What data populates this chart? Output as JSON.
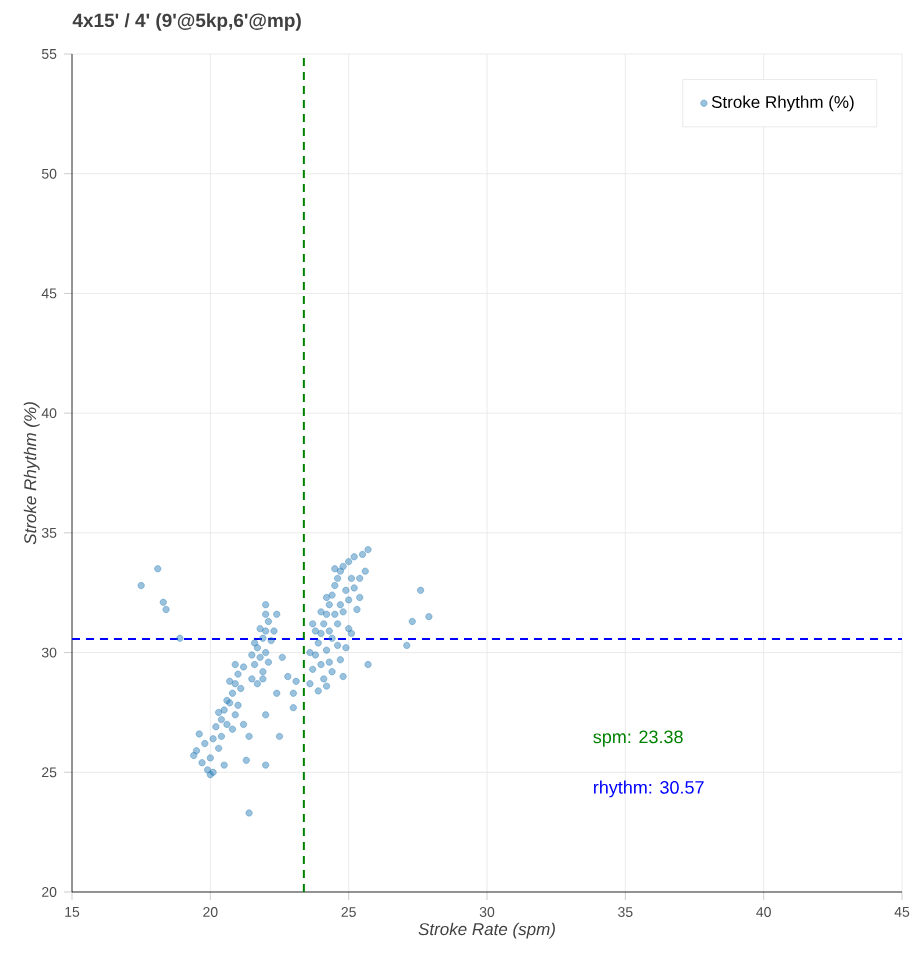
{
  "chart_data": {
    "type": "scatter",
    "title": "4x15' / 4' (9'@5kp,6'@mp)",
    "xlabel": "Stroke Rate (spm)",
    "ylabel": "Stroke Rhythm (%)",
    "xlim": [
      15,
      45
    ],
    "xticks": [
      15,
      20,
      25,
      30,
      35,
      40,
      45
    ],
    "ylim": [
      20,
      55
    ],
    "yticks": [
      20,
      25,
      30,
      35,
      40,
      45,
      50,
      55
    ],
    "grid": true,
    "legend": "top right",
    "series": [
      {
        "name": "Stroke Rhythm (%)",
        "color": "#1f77b4",
        "x": [
          19.5,
          19.7,
          19.9,
          20.0,
          19.8,
          20.1,
          20.3,
          20.2,
          20.4,
          20.5,
          20.6,
          20.7,
          20.8,
          20.6,
          20.9,
          21.0,
          21.1,
          20.9,
          21.2,
          20.7,
          20.4,
          20.8,
          21.0,
          20.3,
          20.1,
          20.5,
          19.6,
          20.0,
          21.2,
          20.9,
          21.5,
          21.6,
          21.7,
          21.8,
          21.9,
          22.0,
          22.1,
          21.9,
          22.0,
          21.7,
          22.2,
          21.8,
          21.6,
          22.1,
          22.0,
          21.5,
          22.3,
          21.9,
          23.6,
          23.7,
          23.8,
          23.9,
          24.0,
          24.1,
          24.2,
          24.3,
          24.4,
          24.5,
          24.6,
          24.7,
          24.8,
          25.0,
          25.2,
          25.5,
          25.7,
          24.0,
          24.2,
          24.4,
          24.6,
          24.8,
          25.0,
          25.2,
          25.4,
          25.1,
          24.9,
          24.7,
          24.4,
          24.1,
          23.9,
          24.5,
          24.3,
          24.9,
          25.3,
          25.0,
          24.6,
          23.8,
          24.0,
          24.2,
          23.7,
          24.5,
          25.4,
          25.6,
          24.8,
          24.2,
          23.6,
          25.1,
          24.7,
          24.3,
          17.5,
          18.1,
          18.3,
          18.4,
          18.9,
          19.4,
          21.4,
          22.0,
          22.4,
          22.6,
          22.8,
          22.4,
          22.0,
          22.5,
          21.4,
          22.0,
          21.3,
          27.3,
          27.6,
          27.9,
          27.1,
          25.7,
          23.0,
          23.1,
          23.0
        ],
        "values": [
          25.9,
          25.4,
          25.1,
          25.6,
          26.2,
          26.4,
          26.0,
          26.9,
          27.2,
          27.6,
          27.0,
          27.9,
          28.3,
          28.0,
          28.7,
          29.1,
          28.5,
          27.4,
          29.4,
          28.8,
          26.5,
          26.8,
          27.8,
          27.5,
          25.0,
          25.3,
          26.6,
          24.9,
          27.0,
          29.5,
          28.9,
          29.5,
          30.2,
          29.8,
          30.6,
          30.9,
          31.3,
          29.2,
          30.0,
          28.7,
          30.5,
          31.0,
          30.4,
          29.6,
          31.6,
          29.9,
          30.9,
          28.9,
          28.7,
          29.3,
          29.9,
          30.4,
          30.8,
          31.2,
          31.6,
          32.0,
          32.4,
          32.8,
          33.1,
          33.4,
          33.6,
          33.8,
          34.0,
          34.1,
          34.3,
          29.5,
          30.1,
          30.6,
          31.2,
          31.7,
          32.2,
          32.7,
          33.1,
          30.8,
          30.2,
          29.7,
          29.2,
          28.9,
          28.4,
          31.6,
          30.9,
          32.6,
          31.8,
          31.0,
          30.3,
          30.9,
          31.7,
          32.3,
          31.2,
          33.5,
          32.3,
          33.4,
          29.0,
          28.6,
          30.0,
          33.1,
          32.0,
          29.6,
          32.8,
          33.5,
          32.1,
          31.8,
          30.6,
          25.7,
          23.3,
          32.0,
          31.6,
          29.8,
          29.0,
          28.3,
          27.4,
          26.5,
          26.5,
          25.3,
          25.5,
          31.3,
          32.6,
          31.5,
          30.3,
          29.5,
          28.3,
          28.8,
          27.7
        ]
      }
    ],
    "ref_lines": [
      {
        "axis": "x",
        "value": 23.38,
        "color": "#008000",
        "line_style": "dashed"
      },
      {
        "axis": "y",
        "value": 30.57,
        "color": "#0000ff",
        "line_style": "dashed"
      }
    ],
    "annotations": [
      "spm:  23.38",
      "rhythm:  30.57"
    ]
  }
}
